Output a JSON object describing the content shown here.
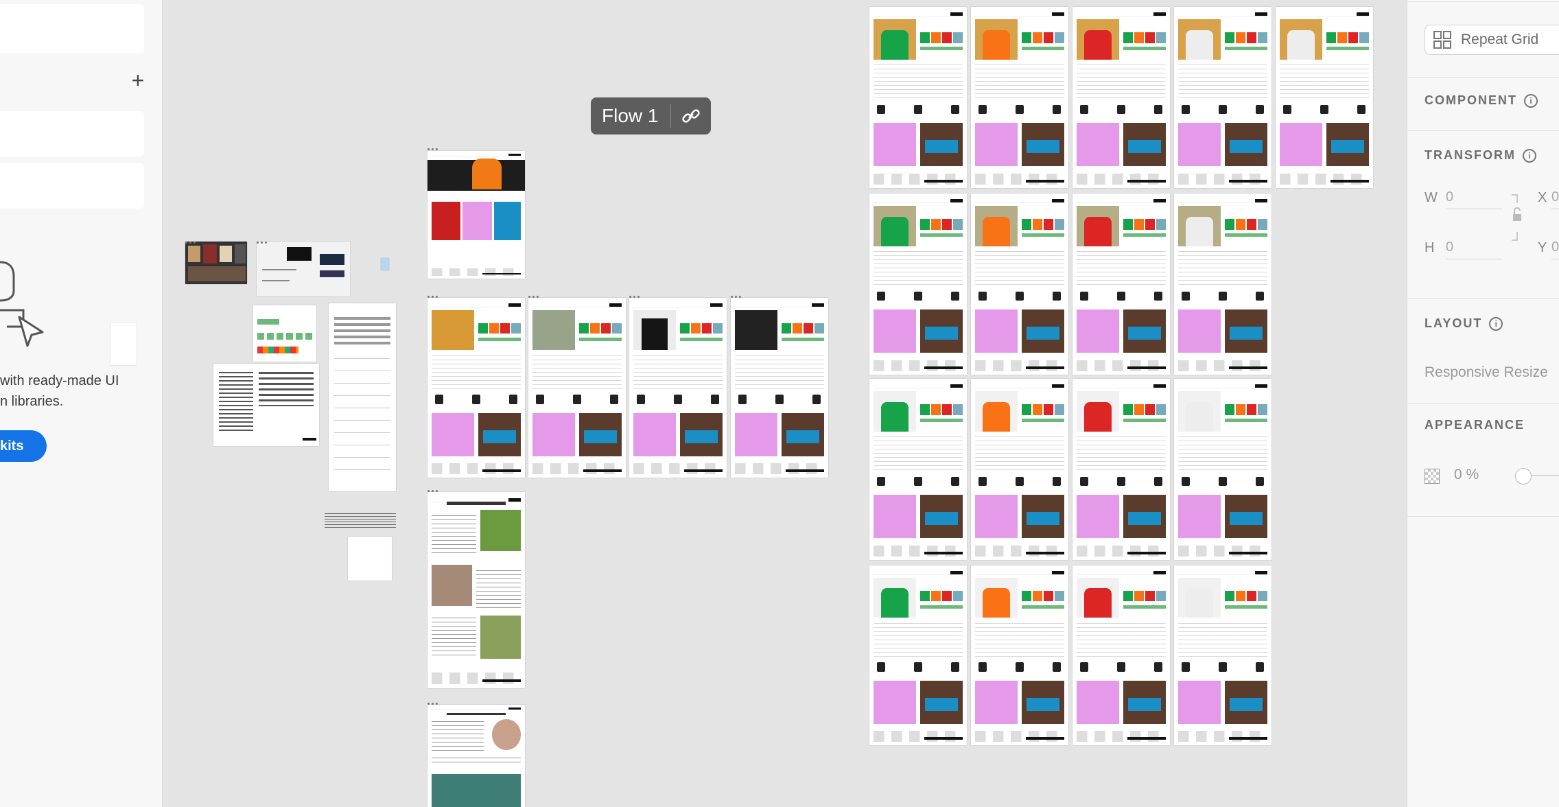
{
  "left_panel": {
    "plus_label": "+",
    "promo_text_line1": "with ready-made UI",
    "promo_text_line2": "n libraries.",
    "button_label": "kits",
    "accent_color": "#1473e6"
  },
  "canvas": {
    "flow_label": "Flow 1",
    "flow_icon": "link-icon"
  },
  "right_panel": {
    "repeat_grid_label": "Repeat Grid",
    "component_heading": "COMPONENT",
    "transform_heading": "TRANSFORM",
    "w_label": "W",
    "w_value": "0",
    "h_label": "H",
    "h_value": "0",
    "x_label": "X",
    "x_value": "0",
    "y_label": "Y",
    "y_value": "0",
    "layout_heading": "LAYOUT",
    "responsive_resize_label": "Responsive Resize",
    "appearance_heading": "APPEARANCE",
    "opacity_value": "0 %"
  },
  "product_colors": {
    "green": "#16a34a",
    "orange": "#f97316",
    "red": "#dc2626",
    "white": "#ededed",
    "black": "#1a1a1a"
  }
}
